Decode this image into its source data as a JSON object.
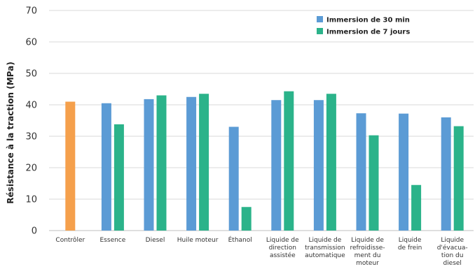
{
  "chart_data": {
    "type": "bar",
    "ylabel": "Résistance à la traction (MPa)",
    "xlabel": "",
    "ylim": [
      0,
      70
    ],
    "yticks": [
      0,
      10,
      20,
      30,
      40,
      50,
      60,
      70
    ],
    "grid": true,
    "legend_position": "top-right",
    "categories": [
      "Contrôler",
      "Essence",
      "Diesel",
      "Huile moteur",
      "Éthanol",
      "Liquide de direction assistée",
      "Liquide de transmission automatique",
      "Liquide de refroidisse- ment du moteur",
      "Liquide de frein",
      "Liquide d'évacua- tion du diesel"
    ],
    "category_lines": [
      [
        "Contrôler"
      ],
      [
        "Essence"
      ],
      [
        "Diesel"
      ],
      [
        "Huile moteur"
      ],
      [
        "Éthanol"
      ],
      [
        "Liquide de",
        "direction",
        "assistée"
      ],
      [
        "Liquide de",
        "transmission",
        "automatique"
      ],
      [
        "Liquide de",
        "refroidisse-",
        "ment du",
        "moteur"
      ],
      [
        "Liquide",
        "de frein"
      ],
      [
        "Liquide",
        "d'évacua-",
        "tion du",
        "diesel"
      ]
    ],
    "control": {
      "value": 41,
      "color": "#f5a04c"
    },
    "series": [
      {
        "name": "Immersion de 30 min",
        "color": "#5b9bd5",
        "values": [
          null,
          40.5,
          41.8,
          42.5,
          33,
          41.5,
          41.5,
          37.3,
          37.2,
          36
        ]
      },
      {
        "name": "Immersion de 7 jours",
        "color": "#2bb38a",
        "values": [
          null,
          33.8,
          43,
          43.5,
          7.5,
          44.3,
          43.5,
          30.3,
          14.5,
          33.2
        ]
      }
    ]
  }
}
